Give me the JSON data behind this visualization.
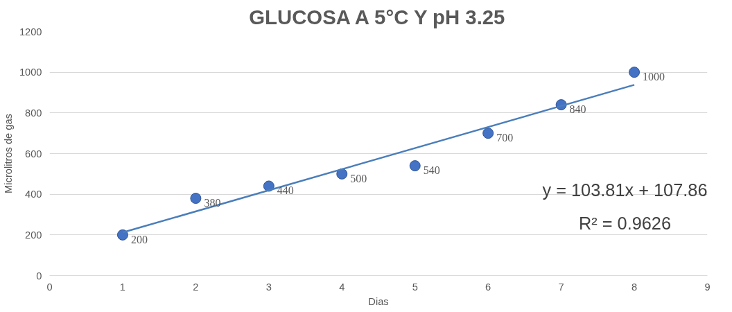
{
  "chart_data": {
    "type": "scatter",
    "title": "GLUCOSA A 5°C Y pH 3.25",
    "xlabel": "Dias",
    "ylabel": "Microlitros de gas",
    "x": [
      1,
      2,
      3,
      4,
      5,
      6,
      7,
      8
    ],
    "series": [
      {
        "color": "#4472c4",
        "values": [
          200,
          380,
          440,
          500,
          540,
          700,
          840,
          1000
        ],
        "data_labels": true,
        "marker": "circle"
      },
      {
        "type": "line",
        "color": "#4a7ebb",
        "x": [
          1,
          8
        ],
        "values": [
          212,
          938
        ],
        "line_style": "solid"
      }
    ],
    "xlim": [
      0,
      9
    ],
    "xticks": [
      0,
      1,
      2,
      3,
      4,
      5,
      6,
      7,
      8,
      9
    ],
    "ylim": [
      0,
      1200
    ],
    "yticks": [
      0,
      200,
      400,
      600,
      800,
      1000,
      1200
    ],
    "grid": "y",
    "annotations": [
      "y = 103.81x + 107.86",
      "R² = 0.9626"
    ]
  }
}
